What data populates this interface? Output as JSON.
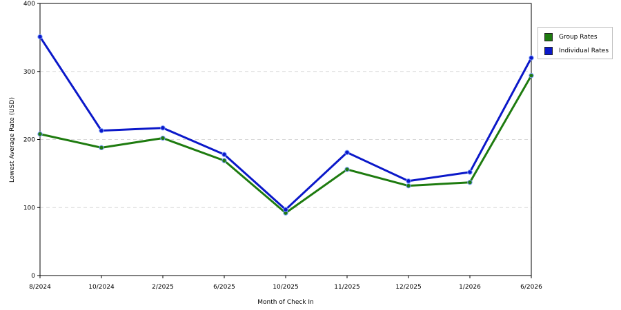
{
  "chart_data": {
    "type": "line",
    "title": "",
    "xlabel": "Month of Check In",
    "ylabel": "Lowest Average Rate (USD)",
    "categories": [
      "8/2024",
      "10/2024",
      "2/2025",
      "6/2025",
      "10/2025",
      "11/2025",
      "12/2025",
      "1/2026",
      "6/2026"
    ],
    "ylim": [
      0,
      400
    ],
    "yticks": [
      "0",
      "100",
      "200",
      "300",
      "400"
    ],
    "grid": true,
    "legend_position": "top-right",
    "series": [
      {
        "name": "Group Rates",
        "color": "#1e7b0f",
        "values": [
          208,
          188,
          202,
          169,
          92,
          156,
          132,
          137,
          294
        ]
      },
      {
        "name": "Individual Rates",
        "color": "#0b18c9",
        "values": [
          351,
          213,
          217,
          178,
          97,
          181,
          139,
          152,
          320
        ]
      }
    ]
  }
}
